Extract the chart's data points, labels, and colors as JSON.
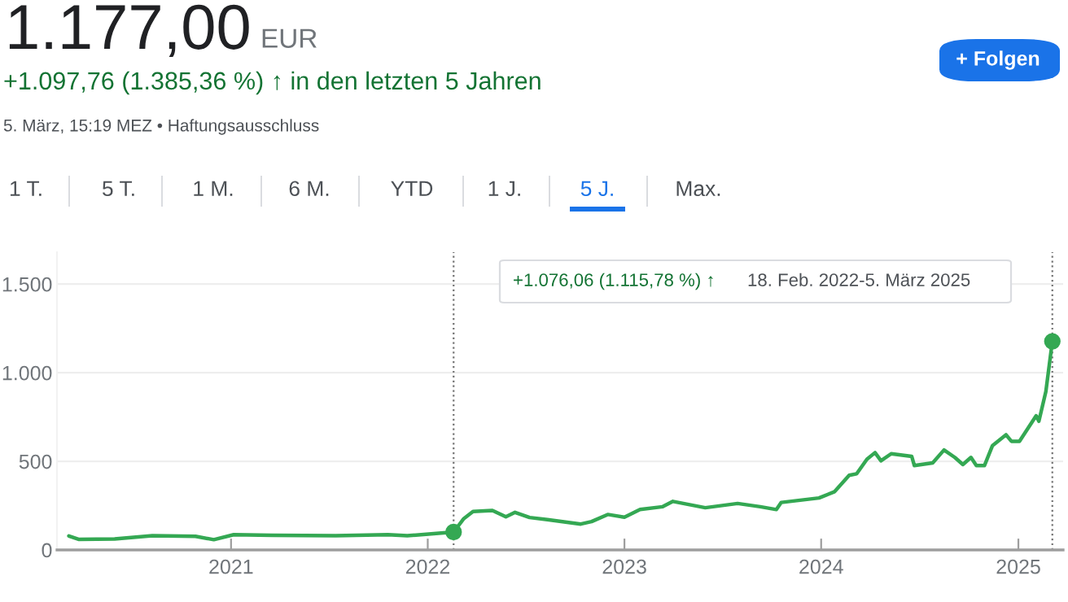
{
  "chart_data": {
    "type": "line",
    "annotations": [
      "1.177,00",
      "EUR",
      "+1.097,76 (1.385,36 %) ↑ in den letzten 5 Jahren",
      "5. März, 15:19 MEZ • Haftungsausschluss",
      "1 T.",
      "5 T.",
      "1 M.",
      "6 M.",
      "YTD",
      "1 J.",
      "5 J.",
      "Max.",
      "+ Folgen",
      "+1.076,06 (1.115,78 %) ↑",
      "18. Feb. 2022-5. März 2025"
    ],
    "series": [
      {
        "color": "#34a853",
        "x": [
          "2020-03-06",
          "2020-03-24",
          "2020-05-30",
          "2020-08-08",
          "2020-10-27",
          "2020-11-30",
          "2021-01-06",
          "2021-03-18",
          "2021-07-14",
          "2021-10-19",
          "2021-11-24",
          "2022-01-12",
          "2022-02-18",
          "2022-03-09",
          "2022-03-26",
          "2022-05-01",
          "2022-05-26",
          "2022-06-12",
          "2022-07-09",
          "2022-08-11",
          "2022-10-12",
          "2022-11-01",
          "2022-12-01",
          "2023-01-01",
          "2023-01-30",
          "2023-03-13",
          "2023-04-01",
          "2023-05-31",
          "2023-07-30",
          "2023-09-10",
          "2023-10-10",
          "2023-10-19",
          "2023-12-28",
          "2024-01-26",
          "2024-02-22",
          "2024-03-07",
          "2024-03-26",
          "2024-04-10",
          "2024-04-21",
          "2024-05-10",
          "2024-06-17",
          "2024-06-22",
          "2024-07-26",
          "2024-08-16",
          "2024-09-05",
          "2024-09-20",
          "2024-10-05",
          "2024-10-15",
          "2024-10-30",
          "2024-11-14",
          "2024-12-09",
          "2024-12-19",
          "2025-01-03",
          "2025-02-03",
          "2025-02-08",
          "2025-02-21",
          "2025-03-05"
        ],
        "values": [
          79,
          60,
          62,
          80,
          77,
          58,
          86,
          83,
          80,
          86,
          80,
          92,
          101,
          177,
          217,
          223,
          187,
          212,
          183,
          171,
          146,
          160,
          200,
          185,
          228,
          244,
          274,
          238,
          262,
          244,
          228,
          268,
          293,
          329,
          421,
          430,
          512,
          549,
          503,
          543,
          528,
          476,
          491,
          564,
          522,
          482,
          522,
          476,
          476,
          589,
          650,
          613,
          613,
          757,
          726,
          894,
          1177
        ]
      },
      {
        "type": "scatter",
        "color": "#34a853",
        "x": [
          "2022-02-18",
          "2025-03-05"
        ],
        "values": [
          101,
          1177
        ]
      }
    ],
    "xlim": [
      "2020-02-13",
      "2025-03-25"
    ],
    "xticks": [
      {
        "value": "2021-01-01",
        "label": "2021"
      },
      {
        "value": "2022-01-01",
        "label": "2022"
      },
      {
        "value": "2023-01-01",
        "label": "2023"
      },
      {
        "value": "2024-01-01",
        "label": "2024"
      },
      {
        "value": "2025-01-01",
        "label": "2025"
      }
    ],
    "ylim": [
      0,
      1680
    ],
    "yticks": [
      0,
      500,
      {
        "value": 1000,
        "label": "1.000"
      },
      {
        "value": 1500,
        "label": "1.500"
      }
    ],
    "grid": "y",
    "ref_lines": [
      {
        "axis": "x",
        "value": "2022-02-18",
        "color": "#757575",
        "line_style": "dotted"
      },
      {
        "axis": "x",
        "value": "2025-03-05",
        "color": "#757575",
        "line_style": "dotted"
      }
    ]
  }
}
